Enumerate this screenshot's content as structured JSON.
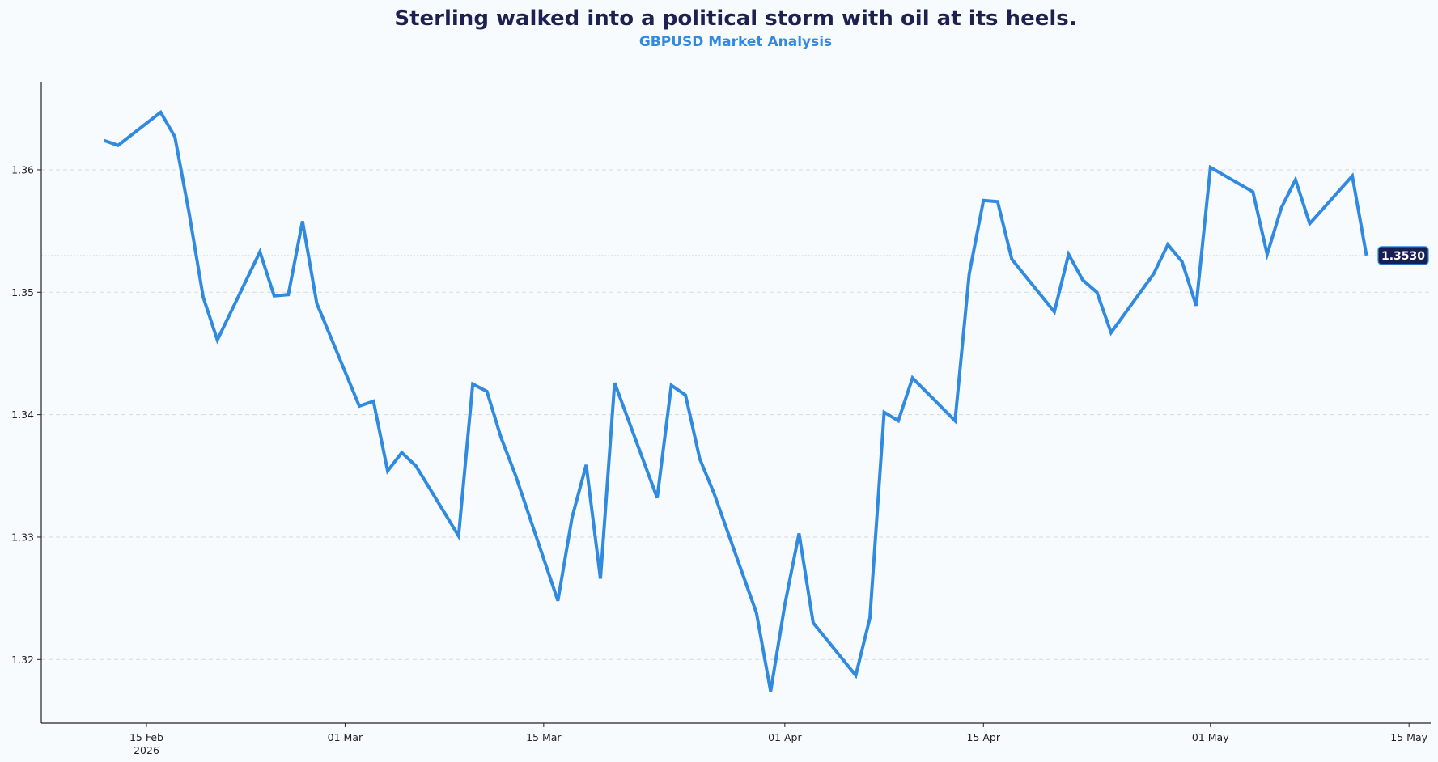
{
  "colors": {
    "background": "#f8fbfe",
    "title": "#1e2150",
    "subtitle": "#2f8ae0",
    "line": "#2f8ae0",
    "grid": "#d4d9de",
    "axis": "#222222",
    "badge_bg": "#1a1f52",
    "badge_text": "#ffffff"
  },
  "chart_data": {
    "type": "line",
    "title": "Sterling walked into a political storm with oil at its heels.",
    "subtitle": "GBPUSD Market Analysis",
    "xlabel": "",
    "ylabel": "",
    "xlim": [
      "2026-02-06",
      "2026-05-16"
    ],
    "ylim": [
      1.3148,
      1.3672
    ],
    "grid": "horizontal dashed",
    "legend": "none",
    "x_ticks": [
      {
        "date": "2026-02-15",
        "label": "15 Feb",
        "sublabel": "2026"
      },
      {
        "date": "2026-03-01",
        "label": "01 Mar",
        "sublabel": ""
      },
      {
        "date": "2026-03-15",
        "label": "15 Mar",
        "sublabel": ""
      },
      {
        "date": "2026-04-01",
        "label": "01 Apr",
        "sublabel": ""
      },
      {
        "date": "2026-04-15",
        "label": "15 Apr",
        "sublabel": ""
      },
      {
        "date": "2026-05-01",
        "label": "01 May",
        "sublabel": ""
      },
      {
        "date": "2026-05-15",
        "label": "15 May",
        "sublabel": ""
      }
    ],
    "y_ticks": [
      {
        "value": 1.32,
        "label": "1.32"
      },
      {
        "value": 1.33,
        "label": "1.33"
      },
      {
        "value": 1.34,
        "label": "1.34"
      },
      {
        "value": 1.35,
        "label": "1.35"
      },
      {
        "value": 1.36,
        "label": "1.36"
      }
    ],
    "reference_line": {
      "value": 1.353
    },
    "last_value_label": "1.3530",
    "series": [
      {
        "x": [
          "2026-02-12",
          "2026-02-13",
          "2026-02-16",
          "2026-02-17",
          "2026-02-18",
          "2026-02-19",
          "2026-02-20",
          "2026-02-23",
          "2026-02-24",
          "2026-02-25",
          "2026-02-26",
          "2026-02-27",
          "2026-03-02",
          "2026-03-03",
          "2026-03-04",
          "2026-03-05",
          "2026-03-06",
          "2026-03-09",
          "2026-03-10",
          "2026-03-11",
          "2026-03-12",
          "2026-03-13",
          "2026-03-16",
          "2026-03-17",
          "2026-03-18",
          "2026-03-19",
          "2026-03-20",
          "2026-03-23",
          "2026-03-24",
          "2026-03-25",
          "2026-03-26",
          "2026-03-27",
          "2026-03-30",
          "2026-03-31",
          "2026-04-01",
          "2026-04-02",
          "2026-04-03",
          "2026-04-06",
          "2026-04-07",
          "2026-04-08",
          "2026-04-09",
          "2026-04-10",
          "2026-04-13",
          "2026-04-14",
          "2026-04-15",
          "2026-04-16",
          "2026-04-17",
          "2026-04-20",
          "2026-04-21",
          "2026-04-22",
          "2026-04-23",
          "2026-04-24",
          "2026-04-27",
          "2026-04-28",
          "2026-04-29",
          "2026-04-30",
          "2026-05-01",
          "2026-05-04",
          "2026-05-05",
          "2026-05-06",
          "2026-05-07",
          "2026-05-08",
          "2026-05-11",
          "2026-05-12"
        ],
        "y": [
          1.3624,
          1.362,
          1.3647,
          1.3627,
          1.3565,
          1.3496,
          1.3461,
          1.3533,
          1.3497,
          1.3498,
          1.3558,
          1.3491,
          1.3407,
          1.3411,
          1.3354,
          1.3369,
          1.3358,
          1.3301,
          1.3425,
          1.3419,
          1.3381,
          1.3351,
          1.3248,
          1.3316,
          1.3359,
          1.3266,
          1.3426,
          1.3332,
          1.3424,
          1.3416,
          1.3364,
          1.3336,
          1.3238,
          1.3174,
          1.3245,
          1.3303,
          1.323,
          1.3187,
          1.3234,
          1.3402,
          1.3395,
          1.343,
          1.3395,
          1.3515,
          1.3575,
          1.3574,
          1.3527,
          1.3484,
          1.3531,
          1.351,
          1.35,
          1.3467,
          1.3515,
          1.3539,
          1.3525,
          1.3489,
          1.3602,
          1.3582,
          1.3531,
          1.3569,
          1.3592,
          1.3556,
          1.3595,
          1.353
        ]
      }
    ]
  }
}
